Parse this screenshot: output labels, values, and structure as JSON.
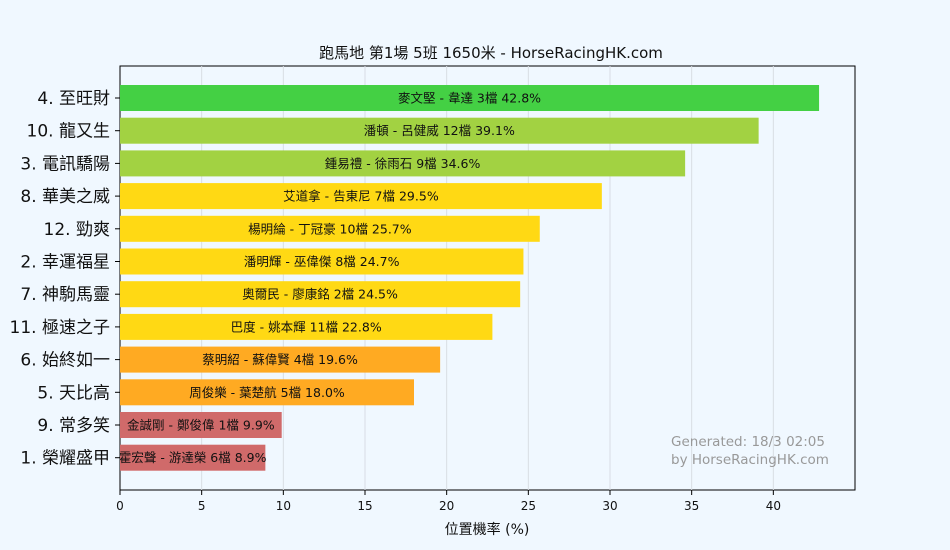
{
  "chart_data": {
    "type": "bar",
    "orientation": "horizontal",
    "title": "跑馬地  第1場  5班  1650米 - HorseRacingHK.com",
    "xlabel": "位置機率 (%)",
    "ylabel": "",
    "xlim": [
      0,
      45
    ],
    "xticks": [
      "0",
      "5",
      "10",
      "15",
      "20",
      "25",
      "30",
      "35",
      "40"
    ],
    "grid": "vertical",
    "categories": [
      "4. 至旺財",
      "10. 龍又生",
      "3. 電訊驕陽",
      "8. 華美之威",
      "12. 勁爽",
      "2. 幸運福星",
      "7. 神駒馬靈",
      "11. 極速之子",
      "6. 始終如一",
      "5. 天比高",
      "9. 常多笑",
      "1. 榮耀盛甲"
    ],
    "values": [
      42.8,
      39.1,
      34.6,
      29.5,
      25.7,
      24.7,
      24.5,
      22.8,
      19.6,
      18.0,
      9.9,
      8.9
    ],
    "bar_labels": [
      "麥文堅 - 韋達 3檔  42.8%",
      "潘頓 - 呂健威 12檔  39.1%",
      "鍾易禮 - 徐雨石 9檔  34.6%",
      "艾道拿 - 告東尼 7檔  29.5%",
      "楊明綸 - 丁冠豪 10檔  25.7%",
      "潘明輝 - 巫偉傑 8檔  24.7%",
      "奧爾民 - 廖康銘 2檔  24.5%",
      "巴度 - 姚本輝 11檔  22.8%",
      "蔡明紹 - 蘇偉賢 4檔  19.6%",
      "周俊樂 - 葉楚航 5檔  18.0%",
      "金誠剛 - 鄭俊偉 1檔  9.9%",
      "霍宏聲 - 游達榮 6檔  8.9%"
    ],
    "colors": [
      "#44d044",
      "#a2d242",
      "#a2d242",
      "#ffd914",
      "#ffd914",
      "#ffd914",
      "#ffd914",
      "#ffd914",
      "#ffaa22",
      "#ffaa22",
      "#d06a6a",
      "#d06a6a"
    ],
    "watermark": [
      "Generated: 18/3 02:05",
      "by HorseRacingHK.com"
    ]
  }
}
